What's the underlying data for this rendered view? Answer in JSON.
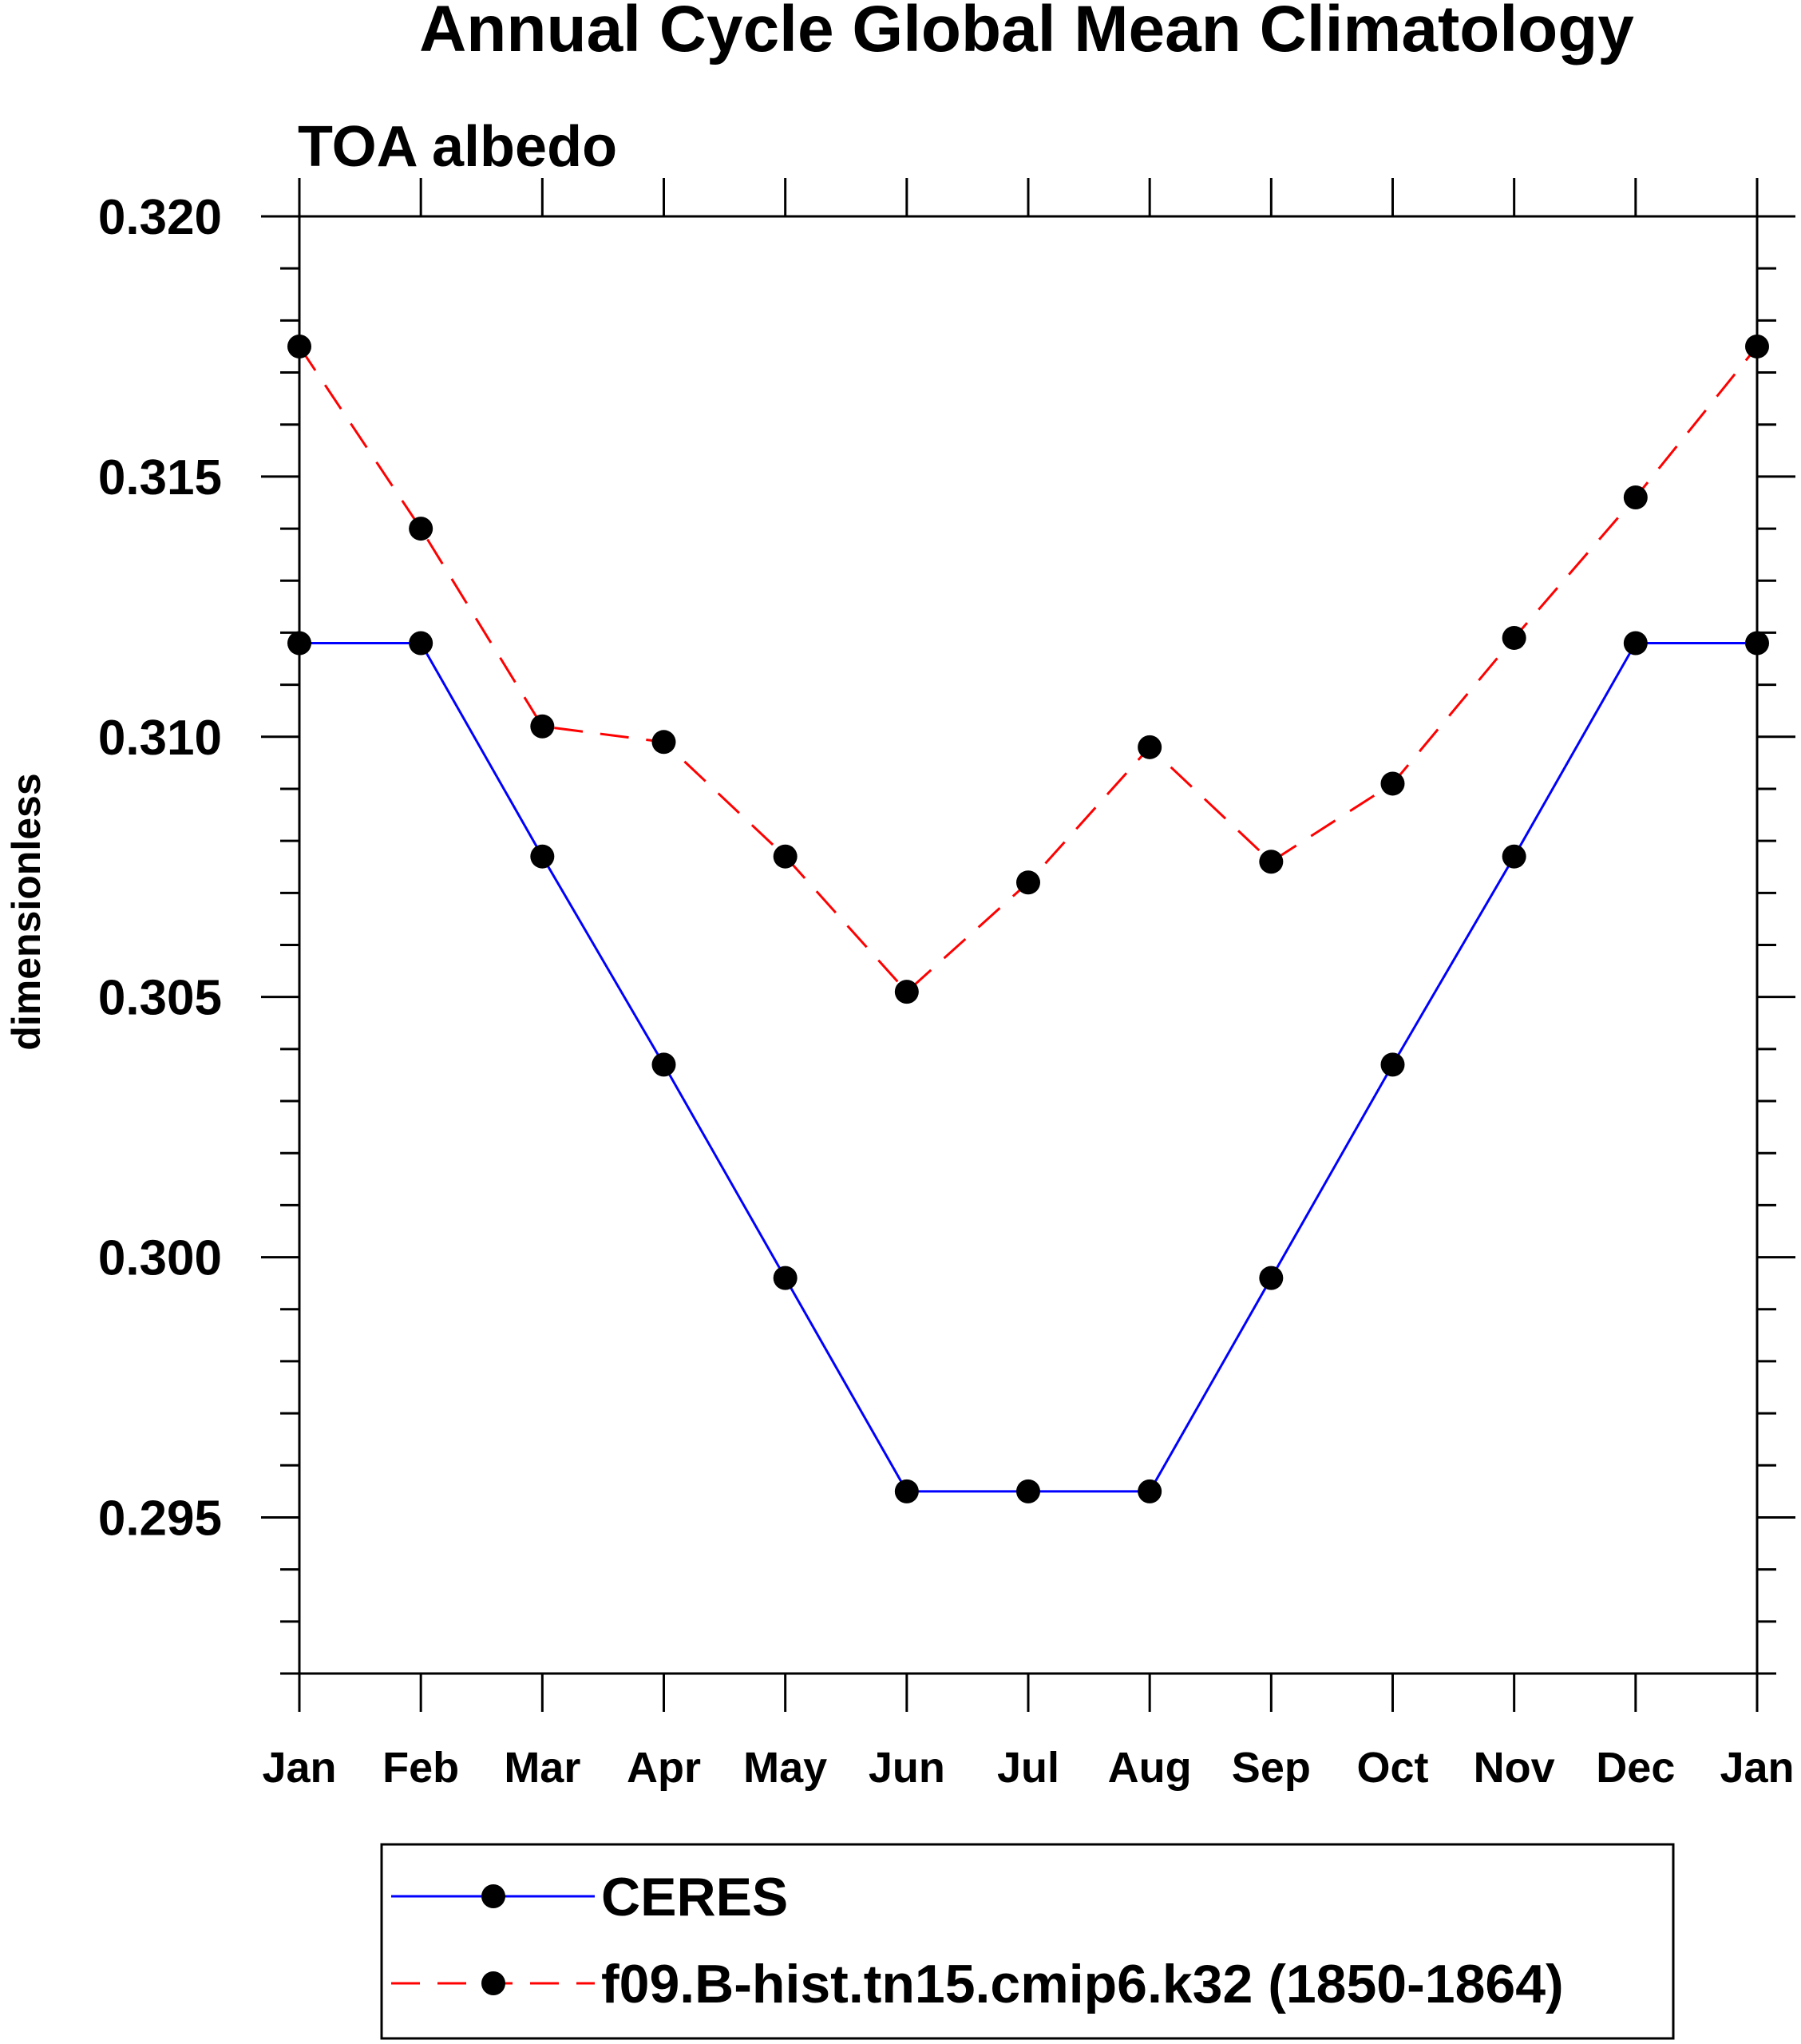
{
  "chart_data": {
    "type": "line",
    "title": "Annual Cycle Global Mean Climatology",
    "subtitle": "TOA albedo",
    "xlabel": "",
    "ylabel": "dimensionless",
    "categories": [
      "Jan",
      "Feb",
      "Mar",
      "Apr",
      "May",
      "Jun",
      "Jul",
      "Aug",
      "Sep",
      "Oct",
      "Nov",
      "Dec",
      "Jan"
    ],
    "ylim": [
      0.292,
      0.32
    ],
    "y_ticks": [
      "0.295",
      "0.300",
      "0.305",
      "0.310",
      "0.315",
      "0.320"
    ],
    "grid": false,
    "legend_position": "bottom",
    "series": [
      {
        "name": "CERES",
        "color": "#0000ff",
        "line_style": "solid",
        "marker": "circle",
        "values": [
          0.3118,
          0.3118,
          0.3077,
          0.3037,
          0.2996,
          0.2955,
          0.2955,
          0.2955,
          0.2996,
          0.3037,
          0.3077,
          0.3118,
          0.3118
        ]
      },
      {
        "name": "f09.B-hist.tn15.cmip6.k32 (1850-1864)",
        "color": "#ff0000",
        "line_style": "dashed",
        "marker": "circle",
        "values": [
          0.3175,
          0.314,
          0.3102,
          0.3099,
          0.3077,
          0.3051,
          0.3072,
          0.3098,
          0.3076,
          0.3091,
          0.3119,
          0.3146,
          0.3175
        ]
      }
    ]
  }
}
